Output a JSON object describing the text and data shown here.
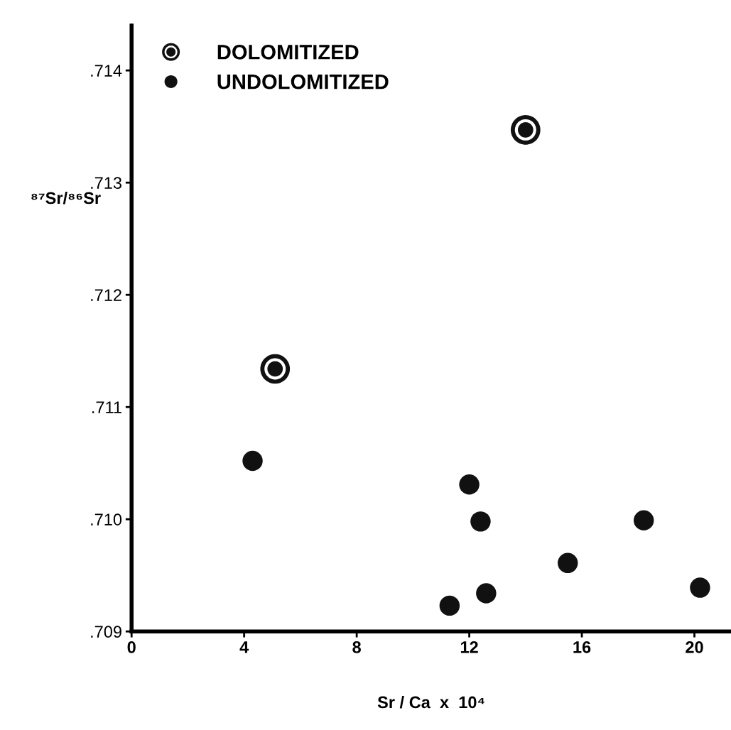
{
  "chart_data": {
    "type": "scatter",
    "xlabel": "Sr / Ca  x  10⁴",
    "ylabel": "⁸⁷Sr/⁸⁶Sr",
    "xlim": [
      0,
      21.3
    ],
    "ylim": [
      0.709,
      0.7144
    ],
    "xticks": [
      0,
      4,
      8,
      12,
      16,
      20
    ],
    "yticks": [
      {
        "value": 0.709,
        "label": ".709"
      },
      {
        "value": 0.71,
        "label": ".710"
      },
      {
        "value": 0.711,
        "label": ".711"
      },
      {
        "value": 0.712,
        "label": ".712"
      },
      {
        "value": 0.713,
        "label": ".713"
      },
      {
        "value": 0.714,
        "label": ".714"
      }
    ],
    "marker": "circle",
    "legend": "top left",
    "grid": false,
    "series": [
      {
        "name": "DOLOMITIZED",
        "color": "#111111",
        "x": [
          5.1,
          14.0
        ],
        "values": [
          0.71134,
          0.71347
        ]
      },
      {
        "name": "UNDOLOMITIZED",
        "color": "#111111",
        "x": [
          4.3,
          12.0,
          12.4,
          11.3,
          12.6,
          15.5,
          18.2,
          20.2
        ],
        "values": [
          0.71052,
          0.71031,
          0.70998,
          0.70923,
          0.70934,
          0.70961,
          0.70999,
          0.70939
        ]
      }
    ]
  }
}
